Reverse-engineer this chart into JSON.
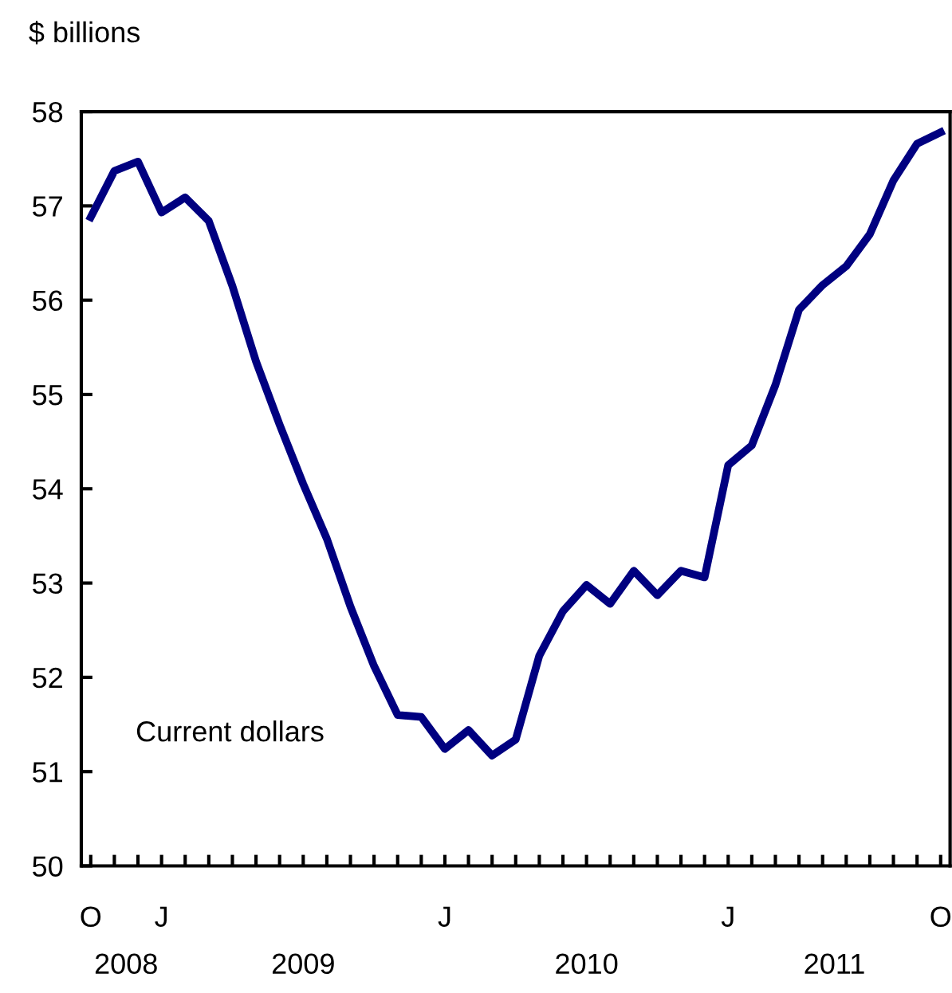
{
  "chart_data": {
    "type": "line",
    "ylabel": "$ billions",
    "categories": [
      "O",
      null,
      null,
      "J",
      null,
      null,
      null,
      null,
      null,
      null,
      null,
      null,
      null,
      null,
      null,
      "J",
      null,
      null,
      null,
      null,
      null,
      null,
      null,
      null,
      null,
      null,
      null,
      "J",
      null,
      null,
      null,
      null,
      null,
      null,
      null,
      null,
      "O"
    ],
    "series": [
      {
        "name": "Current dollars",
        "color": "#000080",
        "values": [
          56.88,
          57.37,
          57.47,
          56.93,
          57.09,
          56.84,
          56.15,
          55.35,
          54.68,
          54.05,
          53.47,
          52.75,
          52.12,
          51.6,
          51.58,
          51.24,
          51.44,
          51.17,
          51.34,
          52.23,
          52.7,
          52.98,
          52.78,
          53.13,
          52.87,
          53.13,
          53.06,
          54.25,
          54.46,
          55.1,
          55.9,
          56.16,
          56.36,
          56.7,
          57.27,
          57.66,
          57.78
        ]
      }
    ],
    "ylim": [
      50,
      58
    ],
    "yticks": [
      50,
      51,
      52,
      53,
      54,
      55,
      56,
      57,
      58
    ],
    "annotations": [
      "2008",
      "2009",
      "2010",
      "2011"
    ],
    "grid": false,
    "legend": false,
    "marker": "none",
    "line_style": "solid"
  }
}
